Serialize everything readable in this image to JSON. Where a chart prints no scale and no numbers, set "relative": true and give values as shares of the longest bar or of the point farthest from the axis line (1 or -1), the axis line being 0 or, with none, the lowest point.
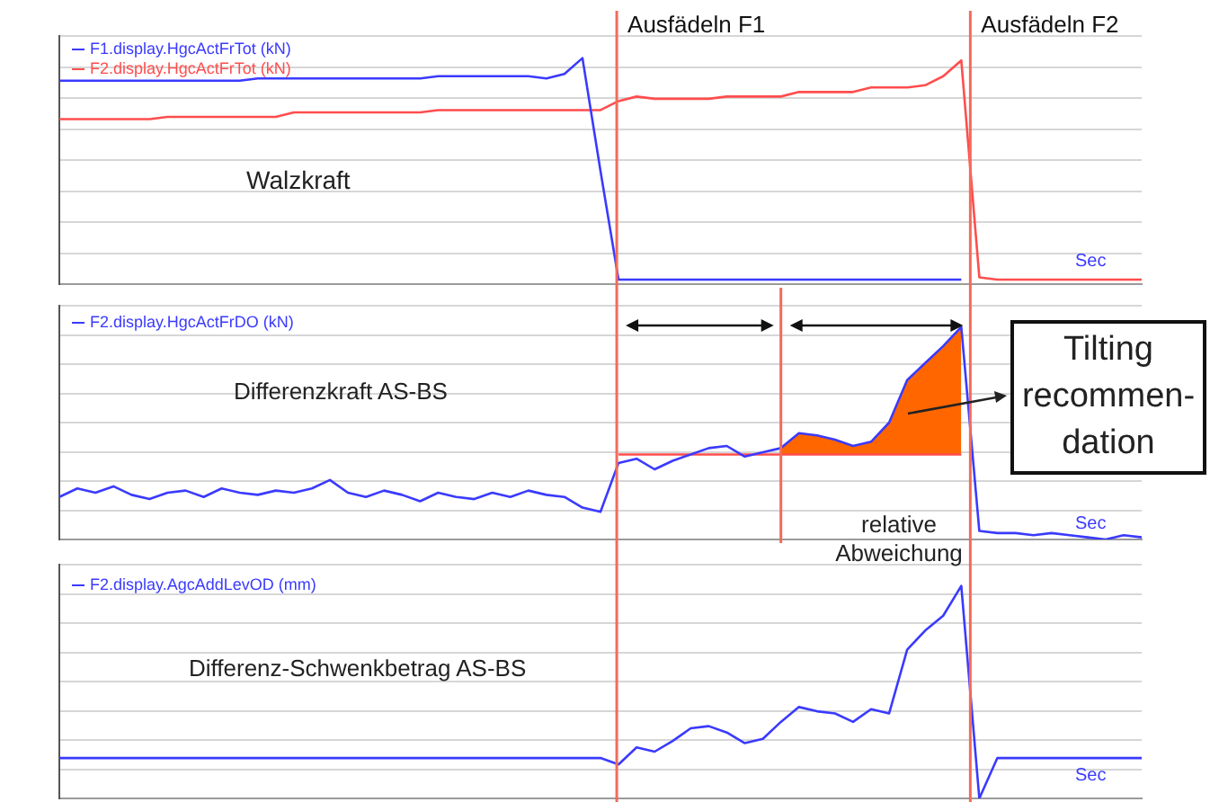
{
  "chart_data": [
    {
      "type": "line",
      "relative": true,
      "grid": true,
      "legend": "top left",
      "xlabel": "Sec",
      "annotations": [
        "Walzkraft",
        "Ausfädeln F1",
        "Ausfädeln F2"
      ],
      "categories": [
        null,
        null,
        null,
        null,
        null,
        null,
        null,
        null,
        null,
        null,
        null,
        null,
        null,
        null,
        null,
        null,
        null,
        null,
        null,
        null,
        null,
        null,
        null,
        null,
        null,
        null,
        null,
        null,
        null,
        null,
        null,
        null,
        null,
        null,
        null,
        null,
        null,
        null,
        null,
        null,
        null,
        null,
        null,
        null,
        null,
        null,
        null,
        null,
        null,
        null,
        null,
        null,
        null,
        null,
        null,
        null,
        null,
        null,
        null,
        null,
        null
      ],
      "series": [
        {
          "name": "F1.display.HgcActFrTot (kN)",
          "color": "#3a3aff",
          "values": [
            0.9,
            0.9,
            0.9,
            0.9,
            0.9,
            0.9,
            0.9,
            0.9,
            0.9,
            0.9,
            0.9,
            0.91,
            0.91,
            0.91,
            0.91,
            0.91,
            0.91,
            0.91,
            0.91,
            0.91,
            0.91,
            0.92,
            0.92,
            0.92,
            0.92,
            0.92,
            0.92,
            0.91,
            0.93,
            1.0,
            0.5,
            0.02,
            0.02,
            0.02,
            0.02,
            0.02,
            0.02,
            0.02,
            0.02,
            0.02,
            0.02,
            0.02,
            0.02,
            0.02,
            0.02,
            0.02,
            0.02,
            0.02,
            0.02,
            0.02,
            0.02,
            null,
            null,
            null,
            null,
            null,
            null,
            null,
            null,
            null,
            null
          ]
        },
        {
          "name": "F2.display.HgcActFrTot (kN)",
          "color": "#ff4d4d",
          "values": [
            0.73,
            0.73,
            0.73,
            0.73,
            0.73,
            0.73,
            0.74,
            0.74,
            0.74,
            0.74,
            0.74,
            0.74,
            0.74,
            0.76,
            0.76,
            0.76,
            0.76,
            0.76,
            0.76,
            0.76,
            0.76,
            0.77,
            0.77,
            0.77,
            0.77,
            0.77,
            0.77,
            0.77,
            0.77,
            0.77,
            0.77,
            0.81,
            0.83,
            0.82,
            0.82,
            0.82,
            0.82,
            0.83,
            0.83,
            0.83,
            0.83,
            0.85,
            0.85,
            0.85,
            0.85,
            0.87,
            0.87,
            0.87,
            0.88,
            0.92,
            0.99,
            0.03,
            0.02,
            0.02,
            0.02,
            0.02,
            0.02,
            0.02,
            0.02,
            0.02,
            0.02
          ]
        }
      ]
    },
    {
      "type": "line",
      "relative": true,
      "grid": true,
      "legend": "top left",
      "xlabel": "Sec",
      "annotations": [
        "Differenzkraft AS-BS",
        "relative Abweichung",
        "Tilting recommen-dation"
      ],
      "categories": [
        null,
        null,
        null,
        null,
        null,
        null,
        null,
        null,
        null,
        null,
        null,
        null,
        null,
        null,
        null,
        null,
        null,
        null,
        null,
        null,
        null,
        null,
        null,
        null,
        null,
        null,
        null,
        null,
        null,
        null,
        null,
        null,
        null,
        null,
        null,
        null,
        null,
        null,
        null,
        null,
        null,
        null,
        null,
        null,
        null,
        null,
        null,
        null,
        null,
        null,
        null,
        null,
        null,
        null,
        null,
        null,
        null,
        null,
        null,
        null,
        null
      ],
      "series": [
        {
          "name": "F2.display.HgcActFrDO (kN)",
          "color": "#3a3aff",
          "values": [
            0.2,
            0.24,
            0.22,
            0.25,
            0.21,
            0.19,
            0.22,
            0.23,
            0.2,
            0.24,
            0.22,
            0.21,
            0.23,
            0.22,
            0.24,
            0.28,
            0.22,
            0.2,
            0.23,
            0.21,
            0.18,
            0.22,
            0.2,
            0.19,
            0.22,
            0.2,
            0.23,
            0.21,
            0.2,
            0.15,
            0.13,
            0.36,
            0.38,
            0.33,
            0.37,
            0.4,
            0.43,
            0.44,
            0.39,
            0.41,
            0.43,
            0.5,
            0.49,
            0.47,
            0.44,
            0.46,
            0.55,
            0.75,
            0.83,
            0.91,
            1.0,
            0.04,
            0.03,
            0.03,
            0.02,
            0.03,
            0.02,
            0.01,
            0.0,
            0.02,
            0.01
          ]
        },
        {
          "color": "#ff4d4d",
          "values": [
            null,
            null,
            null,
            null,
            null,
            null,
            null,
            null,
            null,
            null,
            null,
            null,
            null,
            null,
            null,
            null,
            null,
            null,
            null,
            null,
            null,
            null,
            null,
            null,
            null,
            null,
            null,
            null,
            null,
            null,
            null,
            0.4,
            0.4,
            0.4,
            0.4,
            0.4,
            0.4,
            0.4,
            0.4,
            0.4,
            0.4,
            0.4,
            0.4,
            0.4,
            0.4,
            0.4,
            0.4,
            0.4,
            0.4,
            0.4,
            0.4,
            null,
            null,
            null,
            null,
            null,
            null,
            null,
            null,
            null,
            null
          ]
        },
        {
          "type": "area",
          "color": "#ff6600",
          "values": [
            null,
            null,
            null,
            null,
            null,
            null,
            null,
            null,
            null,
            null,
            null,
            null,
            null,
            null,
            null,
            null,
            null,
            null,
            null,
            null,
            null,
            null,
            null,
            null,
            null,
            null,
            null,
            null,
            null,
            null,
            null,
            null,
            null,
            null,
            null,
            null,
            null,
            null,
            null,
            null,
            0.43,
            0.5,
            0.49,
            0.47,
            0.44,
            0.46,
            0.55,
            0.75,
            0.83,
            0.91,
            1.0,
            null,
            null,
            null,
            null,
            null,
            null,
            null,
            null,
            null,
            null
          ]
        }
      ]
    },
    {
      "type": "line",
      "relative": true,
      "grid": true,
      "legend": "top left",
      "xlabel": "Sec",
      "annotations": [
        "Differenz-Schwenkbetrag AS-BS"
      ],
      "categories": [
        null,
        null,
        null,
        null,
        null,
        null,
        null,
        null,
        null,
        null,
        null,
        null,
        null,
        null,
        null,
        null,
        null,
        null,
        null,
        null,
        null,
        null,
        null,
        null,
        null,
        null,
        null,
        null,
        null,
        null,
        null,
        null,
        null,
        null,
        null,
        null,
        null,
        null,
        null,
        null,
        null,
        null,
        null,
        null,
        null,
        null,
        null,
        null,
        null,
        null,
        null,
        null,
        null,
        null,
        null,
        null,
        null,
        null,
        null,
        null,
        null
      ],
      "series": [
        {
          "name": "F2.display.AgcAddLevOD (mm)",
          "color": "#3a3aff",
          "values": [
            0.19,
            0.19,
            0.19,
            0.19,
            0.19,
            0.19,
            0.19,
            0.19,
            0.19,
            0.19,
            0.19,
            0.19,
            0.19,
            0.19,
            0.19,
            0.19,
            0.19,
            0.19,
            0.19,
            0.19,
            0.19,
            0.19,
            0.19,
            0.19,
            0.19,
            0.19,
            0.19,
            0.19,
            0.19,
            0.19,
            0.19,
            0.16,
            0.24,
            0.22,
            0.27,
            0.33,
            0.34,
            0.31,
            0.26,
            0.28,
            0.36,
            0.43,
            0.41,
            0.4,
            0.36,
            0.42,
            0.4,
            0.7,
            0.79,
            0.86,
            1.0,
            0,
            0.19,
            0.19,
            0.19,
            0.19,
            0.19,
            0.19,
            0.19,
            0.19,
            0.19
          ]
        }
      ]
    }
  ]
}
